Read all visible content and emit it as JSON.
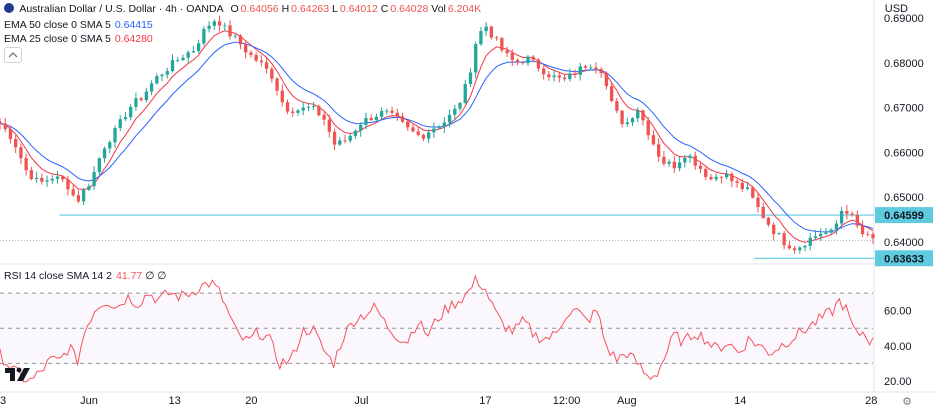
{
  "header": {
    "symbol_title": "Australian Dollar / U.S. Dollar · 4h · OANDA",
    "ohlc": [
      {
        "label": "O",
        "value": "0.64056"
      },
      {
        "label": "H",
        "value": "0.64263"
      },
      {
        "label": "L",
        "value": "0.64012"
      },
      {
        "label": "C",
        "value": "0.64028"
      }
    ],
    "vol_label": "Vol",
    "vol_value": "6.204K",
    "currency": "USD"
  },
  "indicators": [
    {
      "name": "EMA 50 close 0 SMA 5",
      "value": "0.64415",
      "color": "#2962ff"
    },
    {
      "name": "EMA 25 close 0 SMA 5",
      "value": "0.64280",
      "color": "#f23645"
    }
  ],
  "rsi_legend": {
    "name": "RSI 14 close SMA 14 2",
    "value": "41.77",
    "extra": "∅ ∅"
  },
  "icons": {
    "logo": "tradingview-logo-icon",
    "collapse": "chevron-up-icon",
    "settings": "gear-icon"
  },
  "colors": {
    "up": "#26a69a",
    "down": "#ef5350",
    "rsi": "#f7525f",
    "hline": "#5fcbdf",
    "ema50": "#2962ff",
    "ema25": "#f23645"
  },
  "chart_data": [
    {
      "type": "candlestick",
      "pair": "AUD/USD",
      "ylim": [
        0.6355,
        0.6905
      ],
      "y_ticks": [
        "0.69000",
        "0.68000",
        "0.67000",
        "0.66000",
        "0.65000",
        "0.64000"
      ],
      "x_ticks": [
        "3",
        "Jun",
        "13",
        "20",
        "Jul",
        "17",
        "12:00",
        "Aug",
        "14",
        "28"
      ],
      "x_tick_frac": [
        0.0,
        0.102,
        0.2,
        0.288,
        0.414,
        0.556,
        0.649,
        0.718,
        0.848,
        0.998
      ],
      "horizontal_lines": [
        {
          "value": 0.64599,
          "label": "0.64599"
        },
        {
          "value": 0.63633,
          "label": "0.63633"
        }
      ],
      "close_path": [
        [
          0.0,
          0.6665
        ],
        [
          0.015,
          0.663
        ],
        [
          0.03,
          0.656
        ],
        [
          0.045,
          0.653
        ],
        [
          0.06,
          0.6545
        ],
        [
          0.075,
          0.6535
        ],
        [
          0.088,
          0.649
        ],
        [
          0.105,
          0.654
        ],
        [
          0.118,
          0.661
        ],
        [
          0.133,
          0.665
        ],
        [
          0.148,
          0.67
        ],
        [
          0.163,
          0.6725
        ],
        [
          0.178,
          0.6765
        ],
        [
          0.193,
          0.679
        ],
        [
          0.208,
          0.6815
        ],
        [
          0.222,
          0.683
        ],
        [
          0.236,
          0.688
        ],
        [
          0.248,
          0.69
        ],
        [
          0.26,
          0.687
        ],
        [
          0.272,
          0.685
        ],
        [
          0.285,
          0.682
        ],
        [
          0.298,
          0.68
        ],
        [
          0.312,
          0.677
        ],
        [
          0.326,
          0.67
        ],
        [
          0.34,
          0.6695
        ],
        [
          0.356,
          0.67
        ],
        [
          0.37,
          0.668
        ],
        [
          0.384,
          0.6615
        ],
        [
          0.398,
          0.663
        ],
        [
          0.412,
          0.6665
        ],
        [
          0.426,
          0.668
        ],
        [
          0.44,
          0.669
        ],
        [
          0.454,
          0.6675
        ],
        [
          0.468,
          0.665
        ],
        [
          0.482,
          0.6635
        ],
        [
          0.496,
          0.6655
        ],
        [
          0.51,
          0.667
        ],
        [
          0.524,
          0.67
        ],
        [
          0.536,
          0.676
        ],
        [
          0.546,
          0.6855
        ],
        [
          0.556,
          0.6885
        ],
        [
          0.566,
          0.6855
        ],
        [
          0.578,
          0.682
        ],
        [
          0.59,
          0.68
        ],
        [
          0.604,
          0.681
        ],
        [
          0.618,
          0.679
        ],
        [
          0.632,
          0.677
        ],
        [
          0.646,
          0.676
        ],
        [
          0.66,
          0.678
        ],
        [
          0.674,
          0.68
        ],
        [
          0.688,
          0.679
        ],
        [
          0.702,
          0.67
        ],
        [
          0.716,
          0.666
        ],
        [
          0.73,
          0.67
        ],
        [
          0.744,
          0.664
        ],
        [
          0.758,
          0.658
        ],
        [
          0.772,
          0.657
        ],
        [
          0.786,
          0.66
        ],
        [
          0.8,
          0.657
        ],
        [
          0.814,
          0.654
        ],
        [
          0.828,
          0.6555
        ],
        [
          0.842,
          0.653
        ],
        [
          0.856,
          0.6515
        ],
        [
          0.87,
          0.647
        ],
        [
          0.884,
          0.643
        ],
        [
          0.898,
          0.64
        ],
        [
          0.912,
          0.6385
        ],
        [
          0.926,
          0.6405
        ],
        [
          0.94,
          0.642
        ],
        [
          0.954,
          0.642
        ],
        [
          0.966,
          0.648
        ],
        [
          0.974,
          0.646
        ],
        [
          0.986,
          0.642
        ],
        [
          0.998,
          0.6405
        ]
      ]
    },
    {
      "type": "line",
      "name": "RSI 14",
      "ylim": [
        16,
        82
      ],
      "y_ticks": [
        "60.00",
        "40.00",
        "20.00"
      ],
      "bands": [
        70,
        50,
        30
      ],
      "path": [
        [
          0.0,
          35
        ],
        [
          0.012,
          28
        ],
        [
          0.024,
          22
        ],
        [
          0.036,
          20
        ],
        [
          0.048,
          26
        ],
        [
          0.058,
          32
        ],
        [
          0.068,
          31
        ],
        [
          0.08,
          40
        ],
        [
          0.088,
          30
        ],
        [
          0.098,
          50
        ],
        [
          0.11,
          62
        ],
        [
          0.122,
          66
        ],
        [
          0.134,
          62
        ],
        [
          0.146,
          68
        ],
        [
          0.158,
          64
        ],
        [
          0.17,
          70
        ],
        [
          0.182,
          66
        ],
        [
          0.194,
          70
        ],
        [
          0.206,
          68
        ],
        [
          0.218,
          70
        ],
        [
          0.23,
          74
        ],
        [
          0.242,
          76
        ],
        [
          0.252,
          70
        ],
        [
          0.262,
          58
        ],
        [
          0.272,
          46
        ],
        [
          0.284,
          42
        ],
        [
          0.296,
          48
        ],
        [
          0.308,
          44
        ],
        [
          0.32,
          30
        ],
        [
          0.334,
          32
        ],
        [
          0.346,
          48
        ],
        [
          0.358,
          50
        ],
        [
          0.37,
          38
        ],
        [
          0.382,
          30
        ],
        [
          0.394,
          46
        ],
        [
          0.406,
          55
        ],
        [
          0.418,
          58
        ],
        [
          0.43,
          62
        ],
        [
          0.442,
          52
        ],
        [
          0.454,
          46
        ],
        [
          0.466,
          42
        ],
        [
          0.478,
          54
        ],
        [
          0.49,
          46
        ],
        [
          0.502,
          56
        ],
        [
          0.514,
          62
        ],
        [
          0.526,
          66
        ],
        [
          0.536,
          70
        ],
        [
          0.546,
          78
        ],
        [
          0.556,
          72
        ],
        [
          0.566,
          60
        ],
        [
          0.576,
          52
        ],
        [
          0.588,
          48
        ],
        [
          0.6,
          54
        ],
        [
          0.612,
          46
        ],
        [
          0.624,
          44
        ],
        [
          0.636,
          46
        ],
        [
          0.648,
          58
        ],
        [
          0.66,
          60
        ],
        [
          0.672,
          54
        ],
        [
          0.684,
          60
        ],
        [
          0.694,
          40
        ],
        [
          0.706,
          32
        ],
        [
          0.718,
          36
        ],
        [
          0.73,
          30
        ],
        [
          0.742,
          22
        ],
        [
          0.752,
          24
        ],
        [
          0.762,
          34
        ],
        [
          0.772,
          46
        ],
        [
          0.784,
          42
        ],
        [
          0.796,
          48
        ],
        [
          0.808,
          44
        ],
        [
          0.82,
          38
        ],
        [
          0.834,
          42
        ],
        [
          0.846,
          36
        ],
        [
          0.858,
          44
        ],
        [
          0.87,
          40
        ],
        [
          0.882,
          36
        ],
        [
          0.894,
          40
        ],
        [
          0.906,
          44
        ],
        [
          0.918,
          48
        ],
        [
          0.93,
          52
        ],
        [
          0.942,
          56
        ],
        [
          0.954,
          60
        ],
        [
          0.962,
          66
        ],
        [
          0.97,
          60
        ],
        [
          0.98,
          46
        ],
        [
          0.99,
          48
        ],
        [
          0.998,
          42
        ]
      ]
    }
  ]
}
